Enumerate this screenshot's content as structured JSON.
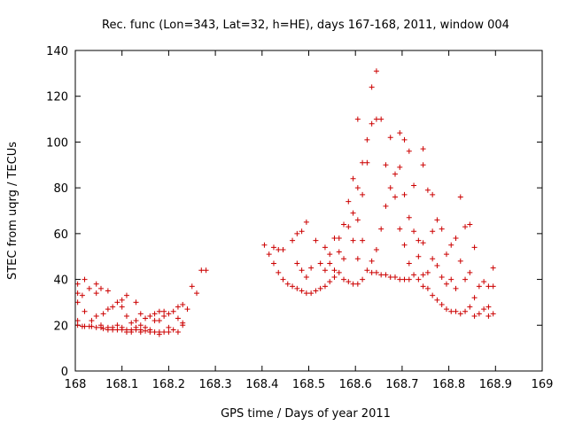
{
  "chart_data": {
    "type": "scatter",
    "title": "Rec. func (Lon=343, Lat=32, h=HE), days 167-168, 2011, window 004",
    "xlabel": "GPS time / Days of year 2011",
    "ylabel": "STEC from uqrg / TECUs",
    "xlim": [
      168,
      169
    ],
    "ylim": [
      0,
      140
    ],
    "xticks": [
      "168",
      "168.1",
      "168.2",
      "168.3",
      "168.4",
      "168.5",
      "168.6",
      "168.7",
      "168.8",
      "168.9",
      "169"
    ],
    "yticks": [
      "0",
      "20",
      "40",
      "60",
      "80",
      "100",
      "120",
      "140"
    ],
    "grid": false,
    "marker": "plus",
    "color": "#cc0000",
    "series": [
      {
        "points": [
          [
            168.005,
            38
          ],
          [
            168.005,
            34
          ],
          [
            168.005,
            30
          ],
          [
            168.005,
            22
          ],
          [
            168.005,
            20
          ],
          [
            168.015,
            33
          ],
          [
            168.015,
            19.5
          ],
          [
            168.02,
            40
          ],
          [
            168.02,
            26
          ],
          [
            168.02,
            19.5
          ],
          [
            168.03,
            36
          ],
          [
            168.03,
            19.5
          ],
          [
            168.035,
            22
          ],
          [
            168.035,
            19.5
          ],
          [
            168.045,
            38
          ],
          [
            168.045,
            34
          ],
          [
            168.045,
            24
          ],
          [
            168.045,
            19
          ],
          [
            168.055,
            36
          ],
          [
            168.055,
            20
          ],
          [
            168.055,
            19
          ],
          [
            168.06,
            25
          ],
          [
            168.06,
            18.5
          ],
          [
            168.07,
            35
          ],
          [
            168.07,
            27
          ],
          [
            168.07,
            19
          ],
          [
            168.07,
            18
          ],
          [
            168.08,
            28
          ],
          [
            168.08,
            19
          ],
          [
            168.08,
            18
          ],
          [
            168.09,
            30
          ],
          [
            168.09,
            20
          ],
          [
            168.09,
            18
          ],
          [
            168.1,
            31
          ],
          [
            168.1,
            28
          ],
          [
            168.1,
            19
          ],
          [
            168.1,
            18
          ],
          [
            168.11,
            33
          ],
          [
            168.11,
            24
          ],
          [
            168.11,
            18
          ],
          [
            168.11,
            17
          ],
          [
            168.12,
            21
          ],
          [
            168.12,
            18
          ],
          [
            168.12,
            17
          ],
          [
            168.13,
            30
          ],
          [
            168.13,
            22
          ],
          [
            168.13,
            19
          ],
          [
            168.13,
            18
          ],
          [
            168.14,
            25
          ],
          [
            168.14,
            20
          ],
          [
            168.14,
            18
          ],
          [
            168.14,
            17
          ],
          [
            168.15,
            23
          ],
          [
            168.15,
            19
          ],
          [
            168.15,
            17.5
          ],
          [
            168.16,
            24
          ],
          [
            168.16,
            18
          ],
          [
            168.16,
            17
          ],
          [
            168.17,
            25
          ],
          [
            168.17,
            22
          ],
          [
            168.17,
            17
          ],
          [
            168.18,
            26
          ],
          [
            168.18,
            22
          ],
          [
            168.18,
            17
          ],
          [
            168.18,
            16
          ],
          [
            168.19,
            26
          ],
          [
            168.19,
            24
          ],
          [
            168.19,
            17
          ],
          [
            168.2,
            25
          ],
          [
            168.2,
            19
          ],
          [
            168.2,
            17
          ],
          [
            168.21,
            26
          ],
          [
            168.21,
            18
          ],
          [
            168.22,
            28
          ],
          [
            168.22,
            23
          ],
          [
            168.22,
            17
          ],
          [
            168.23,
            29
          ],
          [
            168.23,
            21
          ],
          [
            168.23,
            20
          ],
          [
            168.24,
            27
          ],
          [
            168.25,
            37
          ],
          [
            168.26,
            34
          ],
          [
            168.27,
            44
          ],
          [
            168.28,
            44
          ],
          [
            168.405,
            55
          ],
          [
            168.415,
            51
          ],
          [
            168.425,
            54
          ],
          [
            168.425,
            47
          ],
          [
            168.435,
            43
          ],
          [
            168.435,
            53
          ],
          [
            168.445,
            53
          ],
          [
            168.445,
            40
          ],
          [
            168.455,
            38
          ],
          [
            168.465,
            57
          ],
          [
            168.465,
            37
          ],
          [
            168.475,
            60
          ],
          [
            168.475,
            47
          ],
          [
            168.475,
            36
          ],
          [
            168.485,
            61
          ],
          [
            168.485,
            44
          ],
          [
            168.485,
            35
          ],
          [
            168.495,
            65
          ],
          [
            168.495,
            41
          ],
          [
            168.495,
            34
          ],
          [
            168.505,
            45
          ],
          [
            168.505,
            34
          ],
          [
            168.515,
            57
          ],
          [
            168.515,
            35
          ],
          [
            168.525,
            47
          ],
          [
            168.525,
            36
          ],
          [
            168.535,
            54
          ],
          [
            168.535,
            44
          ],
          [
            168.535,
            37
          ],
          [
            168.545,
            51
          ],
          [
            168.545,
            47
          ],
          [
            168.545,
            39
          ],
          [
            168.555,
            58
          ],
          [
            168.555,
            44
          ],
          [
            168.555,
            41
          ],
          [
            168.565,
            58
          ],
          [
            168.565,
            52
          ],
          [
            168.565,
            43
          ],
          [
            168.575,
            64
          ],
          [
            168.575,
            49
          ],
          [
            168.575,
            40
          ],
          [
            168.585,
            74
          ],
          [
            168.585,
            63
          ],
          [
            168.585,
            39
          ],
          [
            168.595,
            84
          ],
          [
            168.595,
            69
          ],
          [
            168.595,
            57
          ],
          [
            168.595,
            38
          ],
          [
            168.605,
            110
          ],
          [
            168.605,
            80
          ],
          [
            168.605,
            66
          ],
          [
            168.605,
            49
          ],
          [
            168.605,
            38
          ],
          [
            168.615,
            91
          ],
          [
            168.615,
            77
          ],
          [
            168.615,
            57
          ],
          [
            168.615,
            40
          ],
          [
            168.625,
            101
          ],
          [
            168.625,
            91
          ],
          [
            168.625,
            44
          ],
          [
            168.635,
            124
          ],
          [
            168.635,
            108
          ],
          [
            168.635,
            48
          ],
          [
            168.635,
            43
          ],
          [
            168.645,
            131
          ],
          [
            168.645,
            110
          ],
          [
            168.645,
            53
          ],
          [
            168.645,
            43
          ],
          [
            168.655,
            110
          ],
          [
            168.655,
            62
          ],
          [
            168.655,
            42
          ],
          [
            168.665,
            90
          ],
          [
            168.665,
            72
          ],
          [
            168.665,
            42
          ],
          [
            168.675,
            102
          ],
          [
            168.675,
            80
          ],
          [
            168.675,
            41
          ],
          [
            168.685,
            86
          ],
          [
            168.685,
            76
          ],
          [
            168.685,
            41
          ],
          [
            168.695,
            104
          ],
          [
            168.695,
            89
          ],
          [
            168.695,
            62
          ],
          [
            168.695,
            40
          ],
          [
            168.705,
            101
          ],
          [
            168.705,
            77
          ],
          [
            168.705,
            55
          ],
          [
            168.705,
            40
          ],
          [
            168.715,
            96
          ],
          [
            168.715,
            67
          ],
          [
            168.715,
            47
          ],
          [
            168.715,
            40
          ],
          [
            168.725,
            81
          ],
          [
            168.725,
            61
          ],
          [
            168.725,
            42
          ],
          [
            168.735,
            57
          ],
          [
            168.735,
            50
          ],
          [
            168.735,
            40
          ],
          [
            168.745,
            97
          ],
          [
            168.745,
            90
          ],
          [
            168.745,
            56
          ],
          [
            168.745,
            42
          ],
          [
            168.745,
            37
          ],
          [
            168.755,
            79
          ],
          [
            168.755,
            43
          ],
          [
            168.755,
            36
          ],
          [
            168.765,
            77
          ],
          [
            168.765,
            61
          ],
          [
            168.765,
            49
          ],
          [
            168.765,
            33
          ],
          [
            168.775,
            66
          ],
          [
            168.775,
            46
          ],
          [
            168.775,
            31
          ],
          [
            168.785,
            62
          ],
          [
            168.785,
            41
          ],
          [
            168.785,
            29
          ],
          [
            168.795,
            51
          ],
          [
            168.795,
            38
          ],
          [
            168.795,
            27
          ],
          [
            168.805,
            55
          ],
          [
            168.805,
            40
          ],
          [
            168.805,
            26
          ],
          [
            168.815,
            58
          ],
          [
            168.815,
            36
          ],
          [
            168.815,
            26
          ],
          [
            168.825,
            76
          ],
          [
            168.825,
            48
          ],
          [
            168.825,
            25
          ],
          [
            168.835,
            63
          ],
          [
            168.835,
            40
          ],
          [
            168.835,
            26
          ],
          [
            168.845,
            64
          ],
          [
            168.845,
            43
          ],
          [
            168.845,
            28
          ],
          [
            168.855,
            54
          ],
          [
            168.855,
            32
          ],
          [
            168.855,
            24
          ],
          [
            168.865,
            37
          ],
          [
            168.865,
            25
          ],
          [
            168.875,
            39
          ],
          [
            168.875,
            27
          ],
          [
            168.885,
            37
          ],
          [
            168.885,
            28
          ],
          [
            168.885,
            24
          ],
          [
            168.895,
            45
          ],
          [
            168.895,
            37
          ],
          [
            168.895,
            25
          ]
        ]
      }
    ]
  }
}
